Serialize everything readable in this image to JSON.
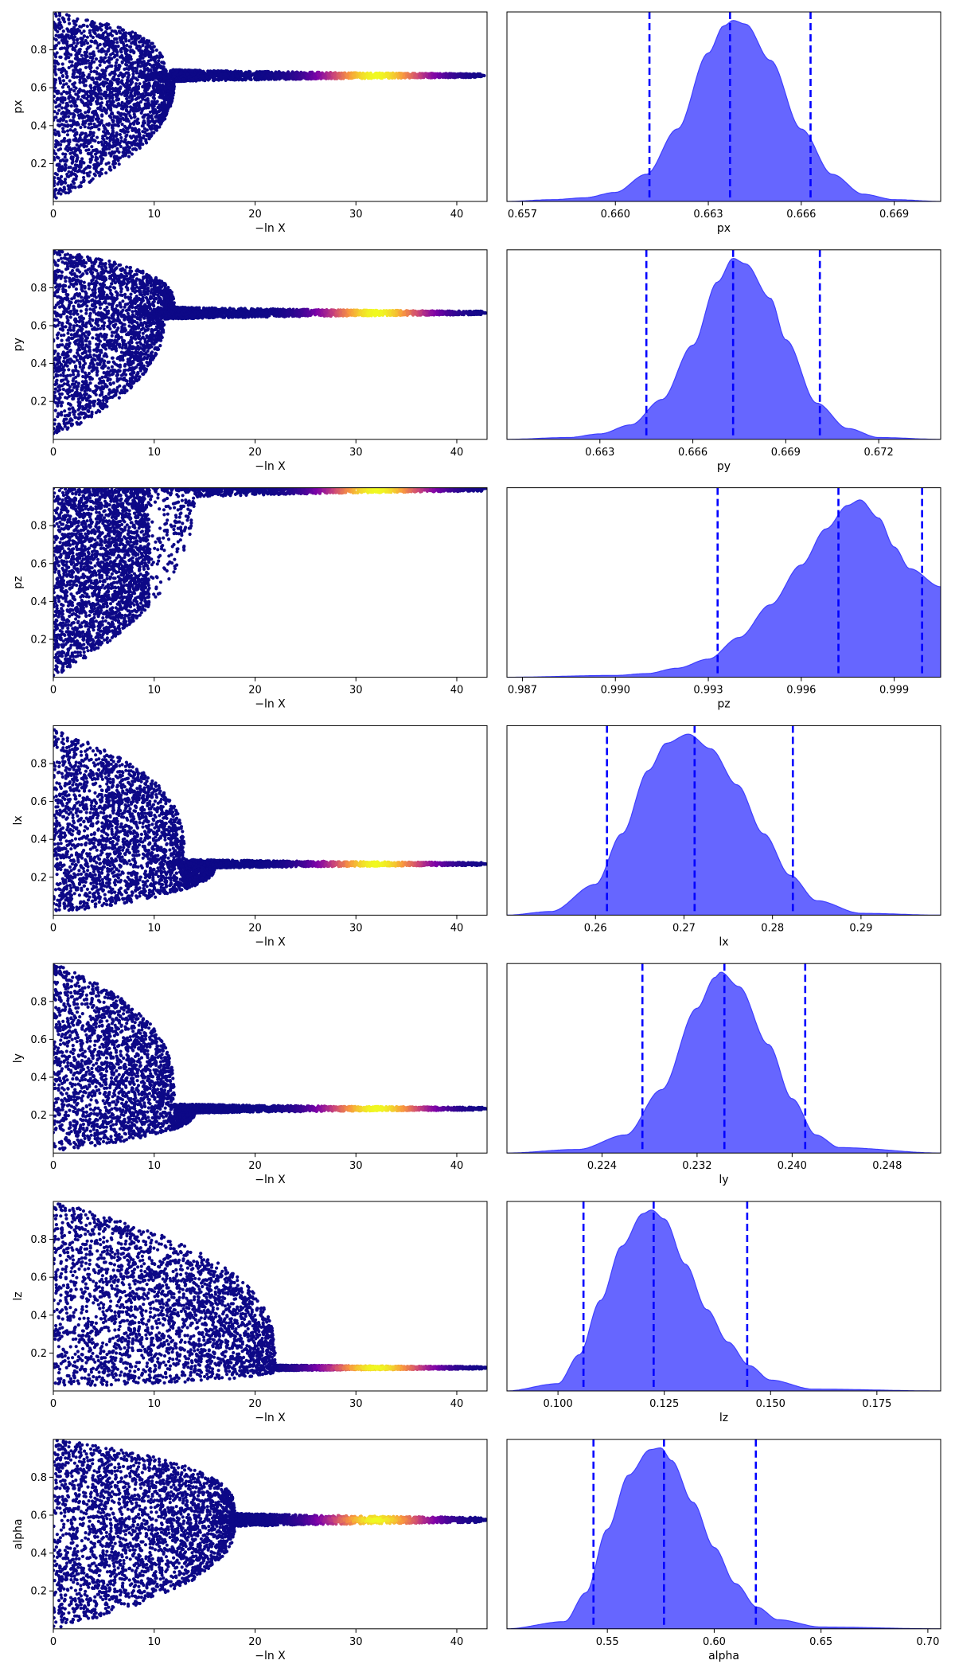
{
  "figure_type": "dynesty trace plot",
  "colors": {
    "trace_low": "#0d0887",
    "trace_mid": "#cc4778",
    "trace_high": "#f0f921",
    "density_fill": "#6666ff",
    "density_line": "#3f3fff",
    "quantile_line": "#0000ff",
    "axes": "#000000"
  },
  "chart_data": [
    {
      "type": "scatter",
      "colormap": "plasma",
      "xlabel": "−ln X",
      "ylabel": "px",
      "xlim": [
        0,
        43
      ],
      "ylim": [
        0,
        1
      ],
      "xticks": [
        0,
        10,
        20,
        30,
        40
      ],
      "yticks": [
        0.2,
        0.4,
        0.6,
        0.8
      ],
      "ytick_labels": [
        "0.2",
        "0.4",
        "0.6",
        "0.8"
      ],
      "converged_value": 0.664,
      "taper_start": 8.5,
      "taper_scale": 2.2,
      "peak_x": 32,
      "min_floor": 0.01,
      "min_reach": 12,
      "max_cap": 1.0,
      "max_reach": 11,
      "spread": 0.05
    },
    {
      "type": "area",
      "xlabel": "px",
      "xlim": [
        0.6565,
        0.6705
      ],
      "xticks": [
        0.657,
        0.66,
        0.663,
        0.666,
        0.669
      ],
      "xtick_labels": [
        "0.657",
        "0.660",
        "0.663",
        "0.666",
        "0.669"
      ],
      "density": [
        [
          0.6565,
          0.0
        ],
        [
          0.658,
          0.01
        ],
        [
          0.659,
          0.02
        ],
        [
          0.66,
          0.05
        ],
        [
          0.661,
          0.15
        ],
        [
          0.662,
          0.4
        ],
        [
          0.663,
          0.82
        ],
        [
          0.6635,
          0.97
        ],
        [
          0.6638,
          1.0
        ],
        [
          0.6642,
          0.98
        ],
        [
          0.665,
          0.78
        ],
        [
          0.666,
          0.4
        ],
        [
          0.667,
          0.15
        ],
        [
          0.668,
          0.04
        ],
        [
          0.669,
          0.01
        ],
        [
          0.6705,
          0.0
        ]
      ],
      "quantiles": [
        0.6611,
        0.6637,
        0.6663
      ]
    },
    {
      "type": "scatter",
      "colormap": "plasma",
      "xlabel": "−ln X",
      "ylabel": "py",
      "xlim": [
        0,
        43
      ],
      "ylim": [
        0,
        1
      ],
      "xticks": [
        0,
        10,
        20,
        30,
        40
      ],
      "yticks": [
        0.2,
        0.4,
        0.6,
        0.8
      ],
      "ytick_labels": [
        "0.2",
        "0.4",
        "0.6",
        "0.8"
      ],
      "converged_value": 0.667,
      "taper_start": 8.5,
      "taper_scale": 2.2,
      "peak_x": 32,
      "min_floor": 0.01,
      "min_reach": 11,
      "max_cap": 1.0,
      "max_reach": 12,
      "spread": 0.05
    },
    {
      "type": "area",
      "xlabel": "py",
      "xlim": [
        0.66,
        0.674
      ],
      "xticks": [
        0.663,
        0.666,
        0.669,
        0.672
      ],
      "xtick_labels": [
        "0.663",
        "0.666",
        "0.669",
        "0.672"
      ],
      "density": [
        [
          0.66,
          0.0
        ],
        [
          0.662,
          0.01
        ],
        [
          0.663,
          0.03
        ],
        [
          0.664,
          0.08
        ],
        [
          0.665,
          0.22
        ],
        [
          0.666,
          0.52
        ],
        [
          0.6668,
          0.87
        ],
        [
          0.6673,
          1.0
        ],
        [
          0.6677,
          0.97
        ],
        [
          0.6685,
          0.78
        ],
        [
          0.669,
          0.55
        ],
        [
          0.67,
          0.2
        ],
        [
          0.671,
          0.06
        ],
        [
          0.672,
          0.01
        ],
        [
          0.674,
          0.0
        ]
      ],
      "quantiles": [
        0.6645,
        0.6673,
        0.6701
      ]
    },
    {
      "type": "scatter",
      "colormap": "plasma",
      "xlabel": "−ln X",
      "ylabel": "pz",
      "xlim": [
        0,
        43
      ],
      "ylim": [
        0,
        1
      ],
      "xticks": [
        0,
        10,
        20,
        30,
        40
      ],
      "yticks": [
        0.2,
        0.4,
        0.6,
        0.8
      ],
      "ytick_labels": [
        "0.2",
        "0.4",
        "0.6",
        "0.8"
      ],
      "converged_value": 0.997,
      "taper_start": 3.5,
      "taper_scale": 3.0,
      "peak_x": 32,
      "min_floor": 0.0,
      "min_reach": 14,
      "max_cap": 1.0,
      "max_reach": 0,
      "spread": 0.08
    },
    {
      "type": "area",
      "xlabel": "pz",
      "xlim": [
        0.9865,
        1.0005
      ],
      "xticks": [
        0.987,
        0.99,
        0.993,
        0.996,
        0.999
      ],
      "xtick_labels": [
        "0.987",
        "0.990",
        "0.993",
        "0.996",
        "0.999"
      ],
      "density": [
        [
          0.9865,
          0.0
        ],
        [
          0.99,
          0.01
        ],
        [
          0.991,
          0.02
        ],
        [
          0.992,
          0.05
        ],
        [
          0.993,
          0.1
        ],
        [
          0.994,
          0.22
        ],
        [
          0.995,
          0.4
        ],
        [
          0.996,
          0.62
        ],
        [
          0.9968,
          0.82
        ],
        [
          0.9975,
          0.95
        ],
        [
          0.9979,
          0.98
        ],
        [
          0.9985,
          0.88
        ],
        [
          0.999,
          0.72
        ],
        [
          0.9995,
          0.6
        ],
        [
          1.0005,
          0.5
        ]
      ],
      "quantiles": [
        0.9933,
        0.9972,
        0.9999
      ]
    },
    {
      "type": "scatter",
      "colormap": "plasma",
      "xlabel": "−ln X",
      "ylabel": "lx",
      "xlim": [
        0,
        43
      ],
      "ylim": [
        0,
        1
      ],
      "xticks": [
        0,
        10,
        20,
        30,
        40
      ],
      "yticks": [
        0.2,
        0.4,
        0.6,
        0.8
      ],
      "ytick_labels": [
        "0.2",
        "0.4",
        "0.6",
        "0.8"
      ],
      "converged_value": 0.27,
      "taper_start": 11.5,
      "taper_scale": 3.5,
      "peak_x": 32,
      "min_floor": 0.01,
      "min_reach": 16,
      "max_cap": 0.98,
      "max_reach": 13,
      "spread": 0.04
    },
    {
      "type": "area",
      "xlabel": "lx",
      "xlim": [
        0.25,
        0.299
      ],
      "xticks": [
        0.26,
        0.27,
        0.28,
        0.29
      ],
      "xtick_labels": [
        "0.26",
        "0.27",
        "0.28",
        "0.29"
      ],
      "density": [
        [
          0.25,
          0.0
        ],
        [
          0.255,
          0.02
        ],
        [
          0.26,
          0.17
        ],
        [
          0.263,
          0.45
        ],
        [
          0.266,
          0.8
        ],
        [
          0.268,
          0.95
        ],
        [
          0.2705,
          1.0
        ],
        [
          0.273,
          0.92
        ],
        [
          0.276,
          0.72
        ],
        [
          0.279,
          0.45
        ],
        [
          0.282,
          0.22
        ],
        [
          0.285,
          0.08
        ],
        [
          0.29,
          0.01
        ],
        [
          0.299,
          0.0
        ]
      ],
      "quantiles": [
        0.2613,
        0.2712,
        0.2823
      ]
    },
    {
      "type": "scatter",
      "colormap": "plasma",
      "xlabel": "−ln X",
      "ylabel": "ly",
      "xlim": [
        0,
        43
      ],
      "ylim": [
        0,
        1
      ],
      "xticks": [
        0,
        10,
        20,
        30,
        40
      ],
      "yticks": [
        0.2,
        0.4,
        0.6,
        0.8
      ],
      "ytick_labels": [
        "0.2",
        "0.4",
        "0.6",
        "0.8"
      ],
      "converged_value": 0.234,
      "taper_start": 12,
      "taper_scale": 4.0,
      "peak_x": 32,
      "min_floor": 0.01,
      "min_reach": 14,
      "max_cap": 1.0,
      "max_reach": 12,
      "spread": 0.04
    },
    {
      "type": "area",
      "xlabel": "ly",
      "xlim": [
        0.216,
        0.2525
      ],
      "xticks": [
        0.224,
        0.232,
        0.24,
        0.248
      ],
      "xtick_labels": [
        "0.224",
        "0.232",
        "0.240",
        "0.248"
      ],
      "density": [
        [
          0.216,
          0.0
        ],
        [
          0.222,
          0.02
        ],
        [
          0.226,
          0.1
        ],
        [
          0.229,
          0.35
        ],
        [
          0.232,
          0.8
        ],
        [
          0.2335,
          0.97
        ],
        [
          0.234,
          1.0
        ],
        [
          0.2355,
          0.92
        ],
        [
          0.238,
          0.6
        ],
        [
          0.24,
          0.3
        ],
        [
          0.242,
          0.1
        ],
        [
          0.244,
          0.03
        ],
        [
          0.2525,
          0.0
        ]
      ],
      "quantiles": [
        0.2274,
        0.2343,
        0.2411
      ]
    },
    {
      "type": "scatter",
      "colormap": "plasma",
      "xlabel": "−ln X",
      "ylabel": "lz",
      "xlim": [
        0,
        43
      ],
      "ylim": [
        0,
        1
      ],
      "xticks": [
        0,
        10,
        20,
        30,
        40
      ],
      "yticks": [
        0.2,
        0.4,
        0.6,
        0.8
      ],
      "ytick_labels": [
        "0.2",
        "0.4",
        "0.6",
        "0.8"
      ],
      "converged_value": 0.122,
      "taper_start": 22.5,
      "taper_scale": 3.5,
      "peak_x": 32,
      "min_floor": 0.02,
      "min_reach": 22,
      "max_cap": 1.0,
      "max_reach": 22,
      "spread": 0.035
    },
    {
      "type": "area",
      "xlabel": "lz",
      "xlim": [
        0.088,
        0.19
      ],
      "xticks": [
        0.1,
        0.125,
        0.15,
        0.175
      ],
      "xtick_labels": [
        "0.100",
        "0.125",
        "0.150",
        "0.175"
      ],
      "density": [
        [
          0.088,
          0.0
        ],
        [
          0.1,
          0.04
        ],
        [
          0.105,
          0.2
        ],
        [
          0.11,
          0.5
        ],
        [
          0.115,
          0.8
        ],
        [
          0.12,
          0.98
        ],
        [
          0.122,
          1.0
        ],
        [
          0.125,
          0.95
        ],
        [
          0.13,
          0.7
        ],
        [
          0.135,
          0.45
        ],
        [
          0.14,
          0.27
        ],
        [
          0.145,
          0.14
        ],
        [
          0.15,
          0.06
        ],
        [
          0.16,
          0.01
        ],
        [
          0.19,
          0.0
        ]
      ],
      "quantiles": [
        0.106,
        0.1225,
        0.1445
      ]
    },
    {
      "type": "scatter",
      "colormap": "plasma",
      "xlabel": "−ln X",
      "ylabel": "alpha",
      "xlim": [
        0,
        43
      ],
      "ylim": [
        0,
        1
      ],
      "xticks": [
        0,
        10,
        20,
        30,
        40
      ],
      "yticks": [
        0.2,
        0.4,
        0.6,
        0.8
      ],
      "ytick_labels": [
        "0.2",
        "0.4",
        "0.6",
        "0.8"
      ],
      "converged_value": 0.575,
      "taper_start": 16,
      "taper_scale": 6.0,
      "peak_x": 32,
      "min_floor": 0.0,
      "min_reach": 18,
      "max_cap": 1.0,
      "max_reach": 18,
      "spread": 0.07
    },
    {
      "type": "area",
      "xlabel": "alpha",
      "xlim": [
        0.503,
        0.706
      ],
      "xticks": [
        0.55,
        0.6,
        0.65,
        0.7
      ],
      "xtick_labels": [
        "0.55",
        "0.60",
        "0.65",
        "0.70"
      ],
      "density": [
        [
          0.503,
          0.0
        ],
        [
          0.53,
          0.04
        ],
        [
          0.54,
          0.2
        ],
        [
          0.55,
          0.55
        ],
        [
          0.56,
          0.85
        ],
        [
          0.57,
          0.99
        ],
        [
          0.575,
          1.0
        ],
        [
          0.58,
          0.93
        ],
        [
          0.59,
          0.7
        ],
        [
          0.6,
          0.45
        ],
        [
          0.61,
          0.25
        ],
        [
          0.62,
          0.12
        ],
        [
          0.63,
          0.05
        ],
        [
          0.65,
          0.01
        ],
        [
          0.706,
          0.0
        ]
      ],
      "quantiles": [
        0.5435,
        0.5765,
        0.6195
      ]
    }
  ]
}
